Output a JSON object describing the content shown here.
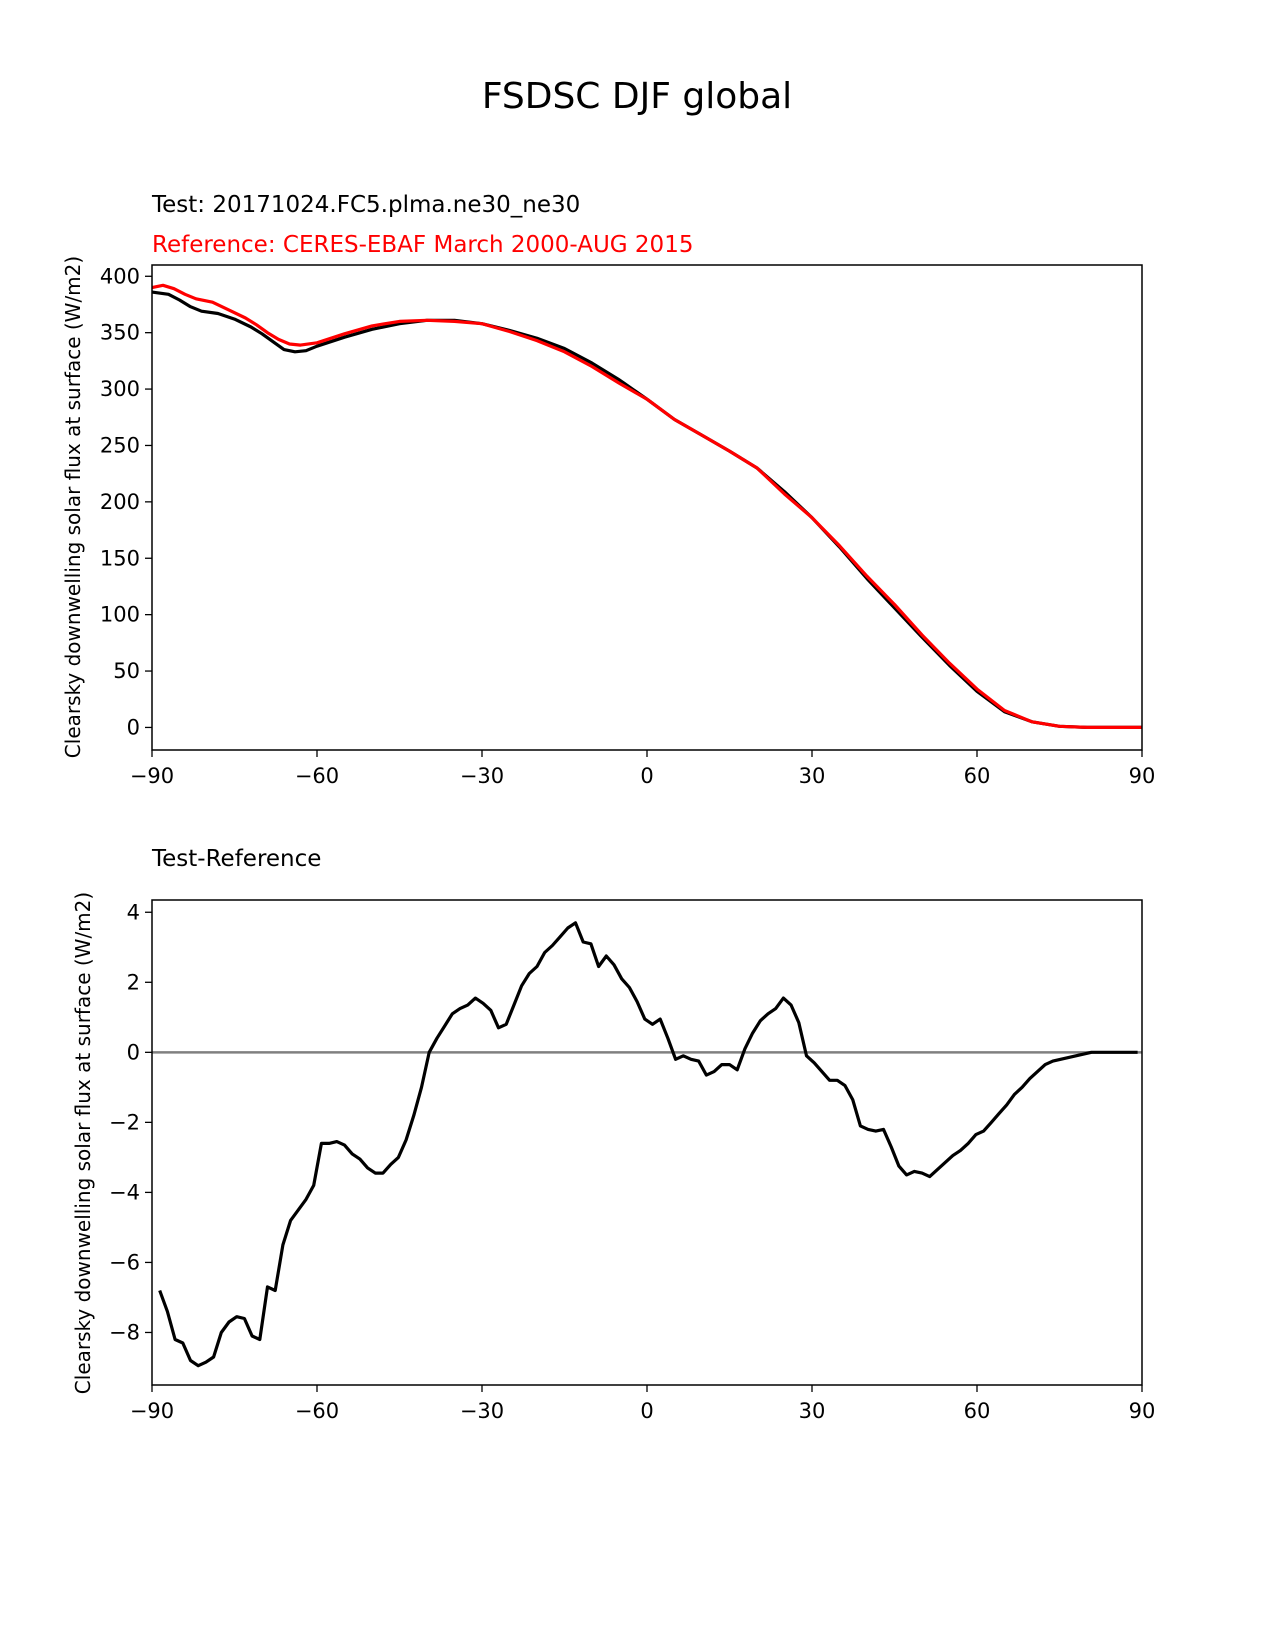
{
  "figure": {
    "title": "FSDSC DJF global"
  },
  "chart_data": [
    {
      "type": "line",
      "test_label": "Test: 20171024.FC5.plma.ne30_ne30",
      "reference_label": "Reference: CERES-EBAF March 2000-AUG 2015",
      "xlabel": "",
      "ylabel": "Clearsky downwelling solar flux at surface (W/m2)",
      "xlim": [
        -90,
        90
      ],
      "ylim": [
        -20,
        410
      ],
      "xticks": [
        -90,
        -60,
        -30,
        0,
        30,
        60,
        90
      ],
      "yticks": [
        0,
        50,
        100,
        150,
        200,
        250,
        300,
        350,
        400
      ],
      "grid": false,
      "series": [
        {
          "name": "Test: 20171024.FC5.plma.ne30_ne30",
          "color": "#000000",
          "x": [
            -90,
            -87,
            -85,
            -83,
            -81,
            -78,
            -75,
            -72,
            -70,
            -68,
            -66,
            -64,
            -62,
            -60,
            -55,
            -50,
            -45,
            -40,
            -35,
            -30,
            -25,
            -20,
            -15,
            -10,
            -5,
            0,
            5,
            10,
            15,
            20,
            25,
            30,
            35,
            40,
            45,
            50,
            55,
            60,
            65,
            70,
            75,
            80,
            85,
            90
          ],
          "values": [
            386,
            384,
            379,
            373,
            369,
            367,
            362,
            355,
            349,
            342,
            335,
            333,
            334,
            338,
            346,
            353,
            358,
            361,
            361,
            358,
            352,
            345,
            336,
            323,
            308,
            291,
            273,
            259,
            245,
            230,
            209,
            186,
            160,
            132,
            106,
            80,
            55,
            32,
            14,
            5,
            1,
            0,
            0,
            0
          ]
        },
        {
          "name": "Reference: CERES-EBAF March 2000-AUG 2015",
          "color": "#ff0000",
          "x": [
            -90,
            -88,
            -86,
            -84,
            -82,
            -79,
            -76,
            -73,
            -71,
            -69,
            -67,
            -65,
            -63,
            -60,
            -55,
            -50,
            -45,
            -40,
            -35,
            -30,
            -25,
            -20,
            -15,
            -10,
            -5,
            0,
            5,
            10,
            15,
            20,
            25,
            30,
            35,
            40,
            45,
            50,
            55,
            60,
            65,
            70,
            75,
            80,
            85,
            90
          ],
          "values": [
            390,
            392,
            389,
            384,
            380,
            377,
            370,
            363,
            357,
            350,
            344,
            340,
            339,
            341,
            349,
            356,
            360,
            361,
            360,
            358,
            351,
            343,
            333,
            320,
            305,
            291,
            273,
            259,
            245,
            230,
            207,
            186,
            161,
            134,
            109,
            82,
            57,
            34,
            15,
            5,
            1,
            0,
            0,
            0
          ]
        }
      ]
    },
    {
      "type": "line",
      "title": "Test-Reference",
      "xlabel": "",
      "ylabel": "Clearsky downwelling solar flux at surface (W/m2)",
      "xlim": [
        -90,
        90
      ],
      "ylim": [
        -9.5,
        4.35
      ],
      "xticks": [
        -90,
        -60,
        -30,
        0,
        30,
        60,
        90
      ],
      "yticks": [
        -8,
        -6,
        -4,
        -2,
        0,
        2,
        4
      ],
      "grid": false,
      "zero_line_color": "#808080",
      "series": [
        {
          "name": "Test-Reference",
          "color": "#000000",
          "x": [
            -88.6,
            -87.2,
            -85.8,
            -84.4,
            -83.0,
            -81.6,
            -80.2,
            -78.8,
            -77.4,
            -76.0,
            -74.6,
            -73.2,
            -71.8,
            -70.4,
            -69.0,
            -67.6,
            -66.2,
            -64.8,
            -63.4,
            -62.0,
            -60.6,
            -59.2,
            -57.8,
            -56.4,
            -55.0,
            -53.6,
            -52.2,
            -50.8,
            -49.4,
            -48.0,
            -46.6,
            -45.2,
            -43.8,
            -42.4,
            -41.0,
            -39.6,
            -38.2,
            -36.8,
            -35.4,
            -34.0,
            -32.6,
            -31.2,
            -29.8,
            -28.4,
            -27.0,
            -25.6,
            -24.2,
            -22.8,
            -21.4,
            -20.0,
            -18.6,
            -17.2,
            -15.8,
            -14.4,
            -13.0,
            -11.6,
            -10.2,
            -8.8,
            -7.4,
            -6.0,
            -4.6,
            -3.2,
            -1.8,
            -0.4,
            1.0,
            2.4,
            3.8,
            5.2,
            6.6,
            8.0,
            9.4,
            10.8,
            12.2,
            13.6,
            15.0,
            16.4,
            17.8,
            19.2,
            20.6,
            22.0,
            23.4,
            24.8,
            26.2,
            27.6,
            29.0,
            30.4,
            31.8,
            33.2,
            34.6,
            36.0,
            37.4,
            38.8,
            40.2,
            41.6,
            43.0,
            44.4,
            45.8,
            47.2,
            48.6,
            50.0,
            51.4,
            52.8,
            54.2,
            55.6,
            57.0,
            58.4,
            59.8,
            61.2,
            62.6,
            64.0,
            65.4,
            66.8,
            68.2,
            69.6,
            71.0,
            72.4,
            73.8,
            75.2,
            76.6,
            78.0,
            79.4,
            80.8,
            82.2,
            83.6,
            85.0,
            86.4,
            87.8,
            89.2
          ],
          "values": [
            -6.8,
            -7.4,
            -8.2,
            -8.3,
            -8.8,
            -8.95,
            -8.85,
            -8.7,
            -8.0,
            -7.7,
            -7.55,
            -7.6,
            -8.1,
            -8.2,
            -6.7,
            -6.8,
            -5.5,
            -4.8,
            -4.5,
            -4.2,
            -3.8,
            -2.6,
            -2.6,
            -2.55,
            -2.65,
            -2.9,
            -3.05,
            -3.3,
            -3.45,
            -3.45,
            -3.2,
            -3.0,
            -2.5,
            -1.8,
            -1.0,
            0.0,
            0.4,
            0.75,
            1.1,
            1.25,
            1.35,
            1.55,
            1.4,
            1.2,
            0.7,
            0.8,
            1.35,
            1.9,
            2.25,
            2.45,
            2.85,
            3.05,
            3.3,
            3.55,
            3.7,
            3.15,
            3.1,
            2.45,
            2.75,
            2.5,
            2.1,
            1.85,
            1.45,
            0.95,
            0.8,
            0.95,
            0.4,
            -0.2,
            -0.1,
            -0.2,
            -0.25,
            -0.65,
            -0.55,
            -0.35,
            -0.35,
            -0.5,
            0.1,
            0.55,
            0.9,
            1.1,
            1.25,
            1.55,
            1.35,
            0.85,
            -0.1,
            -0.3,
            -0.55,
            -0.8,
            -0.8,
            -0.95,
            -1.35,
            -2.1,
            -2.2,
            -2.25,
            -2.2,
            -2.7,
            -3.25,
            -3.5,
            -3.4,
            -3.45,
            -3.55,
            -3.35,
            -3.15,
            -2.95,
            -2.8,
            -2.6,
            -2.35,
            -2.25,
            -2.0,
            -1.75,
            -1.5,
            -1.2,
            -1.0,
            -0.75,
            -0.55,
            -0.35,
            -0.25,
            -0.2,
            -0.15,
            -0.1,
            -0.05,
            0.0,
            0.0,
            0.0,
            0.0,
            0.0,
            0.0,
            0.0
          ]
        }
      ]
    }
  ]
}
